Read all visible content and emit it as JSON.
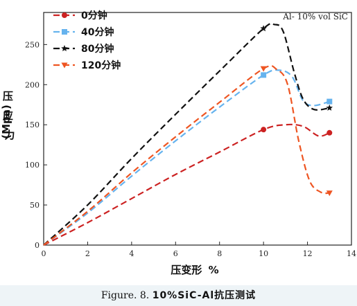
{
  "chart_data": {
    "type": "line",
    "title": "",
    "annotation": "Al- 10% vol SiC",
    "xlabel_text": "压变形",
    "xlabel_unit": "%",
    "ylabel_text": "压应力",
    "ylabel_unit": "(Mpa)",
    "xlim": [
      0,
      14
    ],
    "ylim": [
      0,
      290
    ],
    "xticks": [
      0,
      2,
      4,
      6,
      8,
      10,
      12,
      14
    ],
    "yticks": [
      0,
      50,
      100,
      150,
      200,
      250
    ],
    "legend_position": "top-left",
    "series": [
      {
        "name": "0分钟",
        "color": "#cc2222",
        "marker": "circle",
        "markers": [
          [
            10,
            144
          ],
          [
            13,
            140
          ]
        ],
        "curve": [
          [
            0,
            0
          ],
          [
            2,
            28
          ],
          [
            4,
            58
          ],
          [
            6,
            88
          ],
          [
            8,
            116
          ],
          [
            10,
            144
          ],
          [
            11,
            150
          ],
          [
            11.8,
            148
          ],
          [
            12.5,
            136
          ],
          [
            13,
            140
          ]
        ]
      },
      {
        "name": "40分钟",
        "color": "#66b3ee",
        "marker": "square",
        "markers": [
          [
            10,
            212
          ],
          [
            13,
            179
          ]
        ],
        "curve": [
          [
            0,
            0
          ],
          [
            2,
            40
          ],
          [
            4,
            86
          ],
          [
            6,
            130
          ],
          [
            8,
            172
          ],
          [
            10,
            212
          ],
          [
            10.7,
            218
          ],
          [
            11.3,
            210
          ],
          [
            11.8,
            180
          ],
          [
            12.3,
            174
          ],
          [
            13,
            179
          ]
        ]
      },
      {
        "name": "80分钟",
        "color": "#111111",
        "marker": "star",
        "markers": [
          [
            10,
            270
          ],
          [
            13,
            171
          ]
        ],
        "curve": [
          [
            0,
            0
          ],
          [
            2,
            50
          ],
          [
            4,
            108
          ],
          [
            6,
            163
          ],
          [
            8,
            217
          ],
          [
            10,
            270
          ],
          [
            10.5,
            275
          ],
          [
            10.9,
            266
          ],
          [
            11.4,
            215
          ],
          [
            11.8,
            182
          ],
          [
            12.3,
            169
          ],
          [
            13,
            171
          ]
        ]
      },
      {
        "name": "120分钟",
        "color": "#ee5522",
        "marker": "triangle-down",
        "markers": [
          [
            10,
            220
          ],
          [
            13,
            65
          ]
        ],
        "curve": [
          [
            0,
            0
          ],
          [
            2,
            42
          ],
          [
            4,
            90
          ],
          [
            6,
            135
          ],
          [
            8,
            178
          ],
          [
            10,
            220
          ],
          [
            10.6,
            219
          ],
          [
            11.1,
            200
          ],
          [
            11.6,
            130
          ],
          [
            12.1,
            80
          ],
          [
            12.6,
            66
          ],
          [
            13,
            65
          ]
        ]
      }
    ]
  },
  "caption": {
    "prefix": "Figure. 8.",
    "main": "10%SiC-Al抗压测试"
  }
}
